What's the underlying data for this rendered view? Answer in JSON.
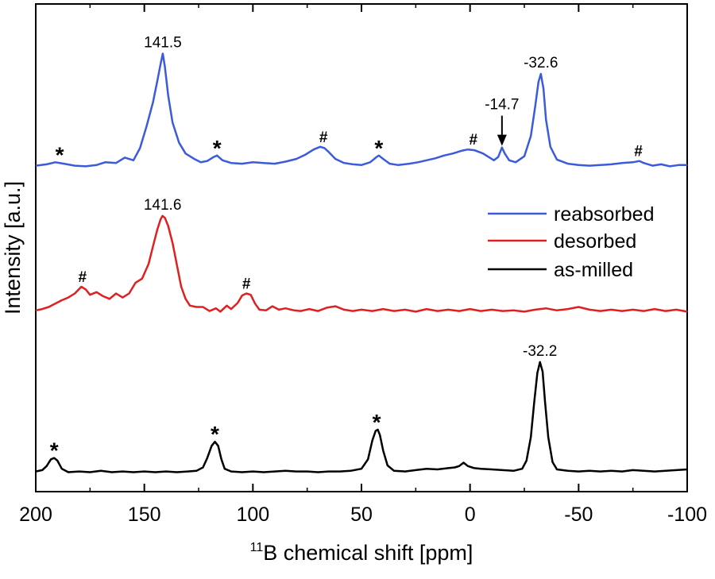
{
  "chart_data": {
    "type": "line",
    "title": "",
    "xlabel": "11B chemical shift [ppm]",
    "xlabel_super": "11",
    "xlabel_rest": "B chemical shift [ppm]",
    "ylabel": "Intensity [a.u.]",
    "xlim": [
      200,
      -100
    ],
    "xticks": [
      200,
      150,
      100,
      50,
      0,
      -50,
      -100
    ],
    "xtick_labels": [
      "200",
      "150",
      "100",
      "50",
      "0",
      "-50",
      "-100"
    ],
    "legend_position": "middle-right",
    "series": [
      {
        "name": "reabsorbed",
        "color": "#3b5bdb",
        "points": [
          [
            200,
            0.04
          ],
          [
            195,
            0.06
          ],
          [
            191,
            0.09
          ],
          [
            187,
            0.07
          ],
          [
            182,
            0.04
          ],
          [
            177,
            0.03
          ],
          [
            172,
            0.05
          ],
          [
            168,
            0.09
          ],
          [
            163,
            0.08
          ],
          [
            159,
            0.16
          ],
          [
            155,
            0.12
          ],
          [
            152,
            0.3
          ],
          [
            149,
            0.62
          ],
          [
            146,
            0.98
          ],
          [
            144,
            1.3
          ],
          [
            142.5,
            1.55
          ],
          [
            141.5,
            1.7
          ],
          [
            140.5,
            1.5
          ],
          [
            139,
            1.08
          ],
          [
            137,
            0.68
          ],
          [
            134,
            0.38
          ],
          [
            131,
            0.22
          ],
          [
            127,
            0.14
          ],
          [
            124,
            0.09
          ],
          [
            121,
            0.11
          ],
          [
            118,
            0.17
          ],
          [
            116.5,
            0.19
          ],
          [
            114,
            0.12
          ],
          [
            110,
            0.08
          ],
          [
            105,
            0.07
          ],
          [
            100,
            0.09
          ],
          [
            95,
            0.08
          ],
          [
            90,
            0.07
          ],
          [
            85,
            0.1
          ],
          [
            80,
            0.14
          ],
          [
            76,
            0.2
          ],
          [
            72,
            0.28
          ],
          [
            69,
            0.32
          ],
          [
            67,
            0.3
          ],
          [
            65,
            0.24
          ],
          [
            62,
            0.14
          ],
          [
            58,
            0.08
          ],
          [
            54,
            0.06
          ],
          [
            50,
            0.05
          ],
          [
            46,
            0.09
          ],
          [
            43,
            0.17
          ],
          [
            42,
            0.19
          ],
          [
            40,
            0.14
          ],
          [
            37,
            0.07
          ],
          [
            33,
            0.05
          ],
          [
            28,
            0.07
          ],
          [
            24,
            0.09
          ],
          [
            20,
            0.12
          ],
          [
            16,
            0.15
          ],
          [
            12,
            0.19
          ],
          [
            8,
            0.22
          ],
          [
            4,
            0.26
          ],
          [
            1,
            0.28
          ],
          [
            -2,
            0.27
          ],
          [
            -6,
            0.22
          ],
          [
            -9,
            0.16
          ],
          [
            -11,
            0.12
          ],
          [
            -13,
            0.17
          ],
          [
            -14.7,
            0.31
          ],
          [
            -16,
            0.22
          ],
          [
            -18,
            0.12
          ],
          [
            -21,
            0.09
          ],
          [
            -25,
            0.18
          ],
          [
            -28,
            0.48
          ],
          [
            -30,
            0.92
          ],
          [
            -31.5,
            1.28
          ],
          [
            -32.6,
            1.4
          ],
          [
            -33.8,
            1.18
          ],
          [
            -35,
            0.72
          ],
          [
            -37,
            0.32
          ],
          [
            -40,
            0.13
          ],
          [
            -45,
            0.07
          ],
          [
            -50,
            0.05
          ],
          [
            -55,
            0.04
          ],
          [
            -60,
            0.05
          ],
          [
            -65,
            0.06
          ],
          [
            -70,
            0.08
          ],
          [
            -75,
            0.09
          ],
          [
            -78,
            0.11
          ],
          [
            -80,
            0.08
          ],
          [
            -84,
            0.04
          ],
          [
            -88,
            0.06
          ],
          [
            -92,
            0.03
          ],
          [
            -96,
            0.05
          ],
          [
            -100,
            0.05
          ]
        ]
      },
      {
        "name": "desorbed",
        "color": "#e02020",
        "points": [
          [
            200,
            0.05
          ],
          [
            197,
            0.07
          ],
          [
            194,
            0.1
          ],
          [
            191,
            0.15
          ],
          [
            188,
            0.2
          ],
          [
            185,
            0.24
          ],
          [
            182,
            0.3
          ],
          [
            179,
            0.4
          ],
          [
            177,
            0.36
          ],
          [
            175,
            0.28
          ],
          [
            172,
            0.32
          ],
          [
            169,
            0.26
          ],
          [
            166,
            0.22
          ],
          [
            163,
            0.3
          ],
          [
            160,
            0.24
          ],
          [
            157,
            0.3
          ],
          [
            154,
            0.46
          ],
          [
            151,
            0.52
          ],
          [
            148,
            0.74
          ],
          [
            146,
            1.0
          ],
          [
            144,
            1.25
          ],
          [
            142.5,
            1.4
          ],
          [
            141.6,
            1.45
          ],
          [
            140.5,
            1.42
          ],
          [
            139,
            1.3
          ],
          [
            137,
            1.05
          ],
          [
            135,
            0.72
          ],
          [
            133,
            0.4
          ],
          [
            131,
            0.22
          ],
          [
            129,
            0.12
          ],
          [
            126,
            0.1
          ],
          [
            123,
            0.1
          ],
          [
            120,
            0.04
          ],
          [
            117,
            0.08
          ],
          [
            115,
            0.03
          ],
          [
            112,
            0.12
          ],
          [
            110,
            0.07
          ],
          [
            107,
            0.16
          ],
          [
            105,
            0.27
          ],
          [
            103,
            0.3
          ],
          [
            101,
            0.28
          ],
          [
            99,
            0.15
          ],
          [
            97,
            0.06
          ],
          [
            94,
            0.05
          ],
          [
            91,
            0.11
          ],
          [
            88,
            0.06
          ],
          [
            85,
            0.08
          ],
          [
            81,
            0.05
          ],
          [
            78,
            0.04
          ],
          [
            74,
            0.07
          ],
          [
            70,
            0.04
          ],
          [
            66,
            0.09
          ],
          [
            62,
            0.11
          ],
          [
            58,
            0.06
          ],
          [
            54,
            0.04
          ],
          [
            50,
            0.06
          ],
          [
            45,
            0.04
          ],
          [
            40,
            0.07
          ],
          [
            35,
            0.04
          ],
          [
            30,
            0.06
          ],
          [
            25,
            0.03
          ],
          [
            20,
            0.07
          ],
          [
            15,
            0.04
          ],
          [
            10,
            0.06
          ],
          [
            5,
            0.04
          ],
          [
            0,
            0.07
          ],
          [
            -5,
            0.04
          ],
          [
            -10,
            0.06
          ],
          [
            -15,
            0.04
          ],
          [
            -20,
            0.05
          ],
          [
            -25,
            0.03
          ],
          [
            -30,
            0.06
          ],
          [
            -35,
            0.08
          ],
          [
            -40,
            0.05
          ],
          [
            -45,
            0.07
          ],
          [
            -50,
            0.1
          ],
          [
            -55,
            0.06
          ],
          [
            -60,
            0.04
          ],
          [
            -65,
            0.06
          ],
          [
            -70,
            0.04
          ],
          [
            -75,
            0.06
          ],
          [
            -80,
            0.04
          ],
          [
            -85,
            0.07
          ],
          [
            -90,
            0.04
          ],
          [
            -95,
            0.06
          ],
          [
            -100,
            0.03
          ]
        ]
      },
      {
        "name": "as-milled",
        "color": "#000000",
        "points": [
          [
            200,
            0.04
          ],
          [
            197,
            0.06
          ],
          [
            195,
            0.12
          ],
          [
            193,
            0.22
          ],
          [
            191.5,
            0.24
          ],
          [
            190,
            0.2
          ],
          [
            188,
            0.08
          ],
          [
            185,
            0.03
          ],
          [
            180,
            0.04
          ],
          [
            175,
            0.03
          ],
          [
            170,
            0.05
          ],
          [
            165,
            0.03
          ],
          [
            160,
            0.04
          ],
          [
            155,
            0.03
          ],
          [
            150,
            0.04
          ],
          [
            145,
            0.03
          ],
          [
            140,
            0.04
          ],
          [
            135,
            0.03
          ],
          [
            130,
            0.04
          ],
          [
            126,
            0.05
          ],
          [
            123,
            0.1
          ],
          [
            121,
            0.24
          ],
          [
            119,
            0.42
          ],
          [
            117.5,
            0.48
          ],
          [
            116,
            0.42
          ],
          [
            114.5,
            0.22
          ],
          [
            113,
            0.08
          ],
          [
            110,
            0.04
          ],
          [
            105,
            0.03
          ],
          [
            100,
            0.04
          ],
          [
            95,
            0.03
          ],
          [
            90,
            0.04
          ],
          [
            85,
            0.05
          ],
          [
            80,
            0.04
          ],
          [
            75,
            0.04
          ],
          [
            70,
            0.03
          ],
          [
            65,
            0.04
          ],
          [
            60,
            0.04
          ],
          [
            55,
            0.05
          ],
          [
            50,
            0.08
          ],
          [
            47,
            0.22
          ],
          [
            45,
            0.5
          ],
          [
            43.5,
            0.64
          ],
          [
            42.5,
            0.66
          ],
          [
            41.5,
            0.58
          ],
          [
            40,
            0.35
          ],
          [
            38,
            0.13
          ],
          [
            35,
            0.05
          ],
          [
            30,
            0.04
          ],
          [
            25,
            0.06
          ],
          [
            20,
            0.08
          ],
          [
            15,
            0.07
          ],
          [
            10,
            0.09
          ],
          [
            7,
            0.1
          ],
          [
            5,
            0.12
          ],
          [
            3,
            0.17
          ],
          [
            1,
            0.12
          ],
          [
            -2,
            0.09
          ],
          [
            -5,
            0.08
          ],
          [
            -10,
            0.07
          ],
          [
            -15,
            0.06
          ],
          [
            -20,
            0.05
          ],
          [
            -24,
            0.08
          ],
          [
            -26,
            0.2
          ],
          [
            -28,
            0.55
          ],
          [
            -29.5,
            1.05
          ],
          [
            -31,
            1.5
          ],
          [
            -32.2,
            1.66
          ],
          [
            -33.4,
            1.52
          ],
          [
            -34.5,
            1.08
          ],
          [
            -36,
            0.55
          ],
          [
            -38,
            0.18
          ],
          [
            -40,
            0.07
          ],
          [
            -45,
            0.05
          ],
          [
            -50,
            0.04
          ],
          [
            -55,
            0.05
          ],
          [
            -60,
            0.04
          ],
          [
            -65,
            0.05
          ],
          [
            -70,
            0.04
          ],
          [
            -75,
            0.06
          ],
          [
            -80,
            0.05
          ],
          [
            -85,
            0.04
          ],
          [
            -90,
            0.05
          ],
          [
            -95,
            0.06
          ],
          [
            -100,
            0.07
          ]
        ]
      }
    ],
    "annotations": [
      {
        "series": 0,
        "x": 141.5,
        "y": 1.7,
        "text": "141.5",
        "kind": "label"
      },
      {
        "series": 0,
        "x": -32.6,
        "y": 1.4,
        "text": "-32.6",
        "kind": "label"
      },
      {
        "series": 0,
        "x": -14.7,
        "y": 0.31,
        "text": "-14.7",
        "kind": "arrow-label"
      },
      {
        "series": 0,
        "x": 189,
        "y": 0.09,
        "text": "*",
        "kind": "marker"
      },
      {
        "series": 0,
        "x": 116.5,
        "y": 0.19,
        "text": "*",
        "kind": "marker"
      },
      {
        "series": 0,
        "x": 42,
        "y": 0.19,
        "text": "*",
        "kind": "marker"
      },
      {
        "series": 0,
        "x": 67.5,
        "y": 0.32,
        "text": "#",
        "kind": "marker"
      },
      {
        "series": 0,
        "x": -1.5,
        "y": 0.28,
        "text": "#",
        "kind": "marker"
      },
      {
        "series": 0,
        "x": -77.5,
        "y": 0.11,
        "text": "#",
        "kind": "marker"
      },
      {
        "series": 1,
        "x": 141.6,
        "y": 1.45,
        "text": "141.6",
        "kind": "label"
      },
      {
        "series": 1,
        "x": 178.5,
        "y": 0.4,
        "text": "#",
        "kind": "marker"
      },
      {
        "series": 1,
        "x": 103,
        "y": 0.3,
        "text": "#",
        "kind": "marker"
      },
      {
        "series": 2,
        "x": -32.2,
        "y": 1.66,
        "text": "-32.2",
        "kind": "label"
      },
      {
        "series": 2,
        "x": 191.5,
        "y": 0.24,
        "text": "*",
        "kind": "marker"
      },
      {
        "series": 2,
        "x": 117.5,
        "y": 0.48,
        "text": "*",
        "kind": "marker"
      },
      {
        "series": 2,
        "x": 43,
        "y": 0.66,
        "text": "*",
        "kind": "marker"
      }
    ]
  }
}
